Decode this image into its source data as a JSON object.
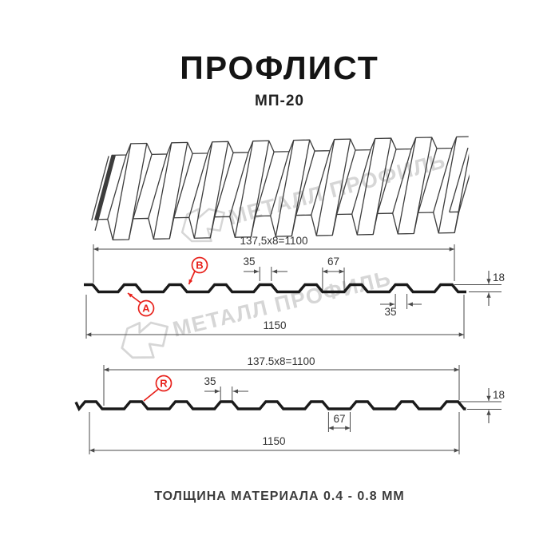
{
  "header": {
    "title": "ПРОФЛИСТ",
    "model": "МП-20"
  },
  "watermark": {
    "brand": "МЕТАЛЛ ПРОФИЛЬ"
  },
  "sections": {
    "section1": {
      "dim_pitch": "137,5x8=1100",
      "dim_crest_width": "35",
      "dim_valley_width": "67",
      "dim_height": "18",
      "dim_crest_width_2": "35",
      "dim_total_width": "1150",
      "label_a": "A",
      "label_b": "B"
    },
    "section2": {
      "dim_pitch": "137.5x8=1100",
      "dim_crest_width": "35",
      "dim_valley_width": "67",
      "dim_height": "18",
      "dim_total_width": "1150",
      "label_r": "R"
    }
  },
  "footer": {
    "thickness_note": "ТОЛЩИНА МАТЕРИАЛА 0.4 - 0.8 ММ"
  },
  "colors": {
    "accent_red": "#e8221c",
    "profile_line": "#1a1a1a",
    "dimension_line": "#4a4a4a",
    "watermark_gray": "#d6d6d6"
  }
}
